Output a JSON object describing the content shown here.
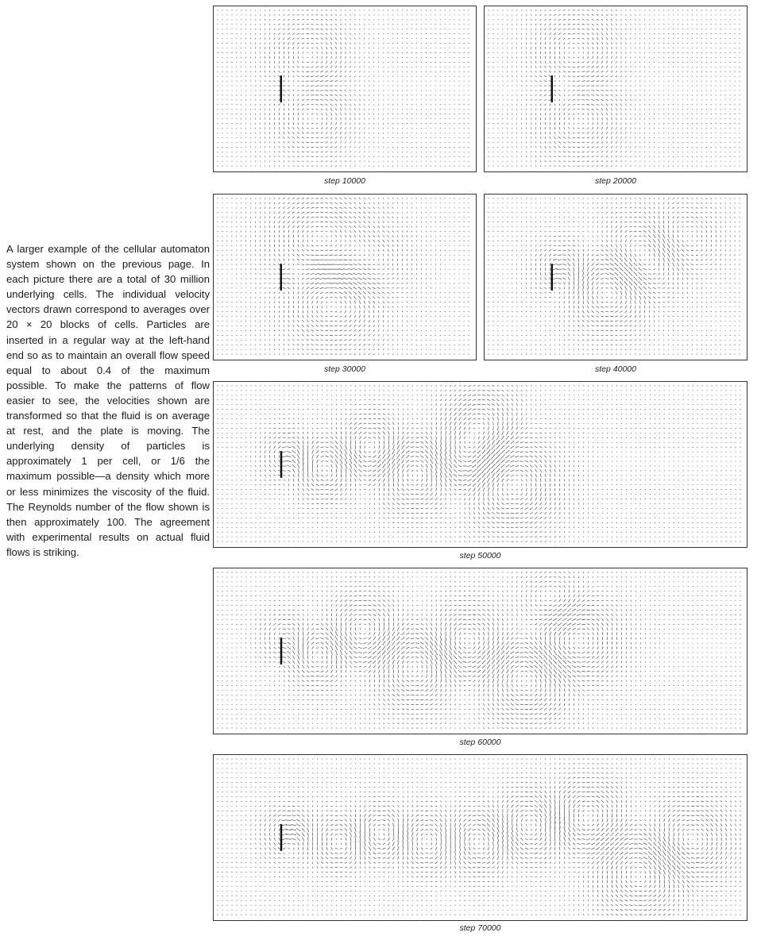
{
  "caption": "A larger example of the cellular automaton system shown on the previous page. In each picture there are a total of 30 million underlying cells. The individual velocity vectors drawn correspond to averages over 20 × 20 blocks of cells. Particles are inserted in a regular way at the left-hand end so as to maintain an overall flow speed equal to about 0.4 of the maximum possible. To make the patterns of flow easier to see, the velocities shown are transformed so that the fluid is on average at rest, and the plate is moving. The underlying density of particles is approximately 1 per cell, or 1/6 the maximum possible—a density which more or less minimizes the viscosity of the fluid. The Reynolds number of the flow shown is then approximately 100. The agreement with experimental results on actual fluid flows is striking.",
  "panels": [
    {
      "label": "step 10000"
    },
    {
      "label": "step 20000"
    },
    {
      "label": "step 30000"
    },
    {
      "label": "step 40000"
    },
    {
      "label": "step 50000"
    },
    {
      "label": "step 60000"
    },
    {
      "label": "step 70000"
    }
  ],
  "colors": {
    "vector": "#222222",
    "border": "#333333",
    "plate": "#111111"
  }
}
